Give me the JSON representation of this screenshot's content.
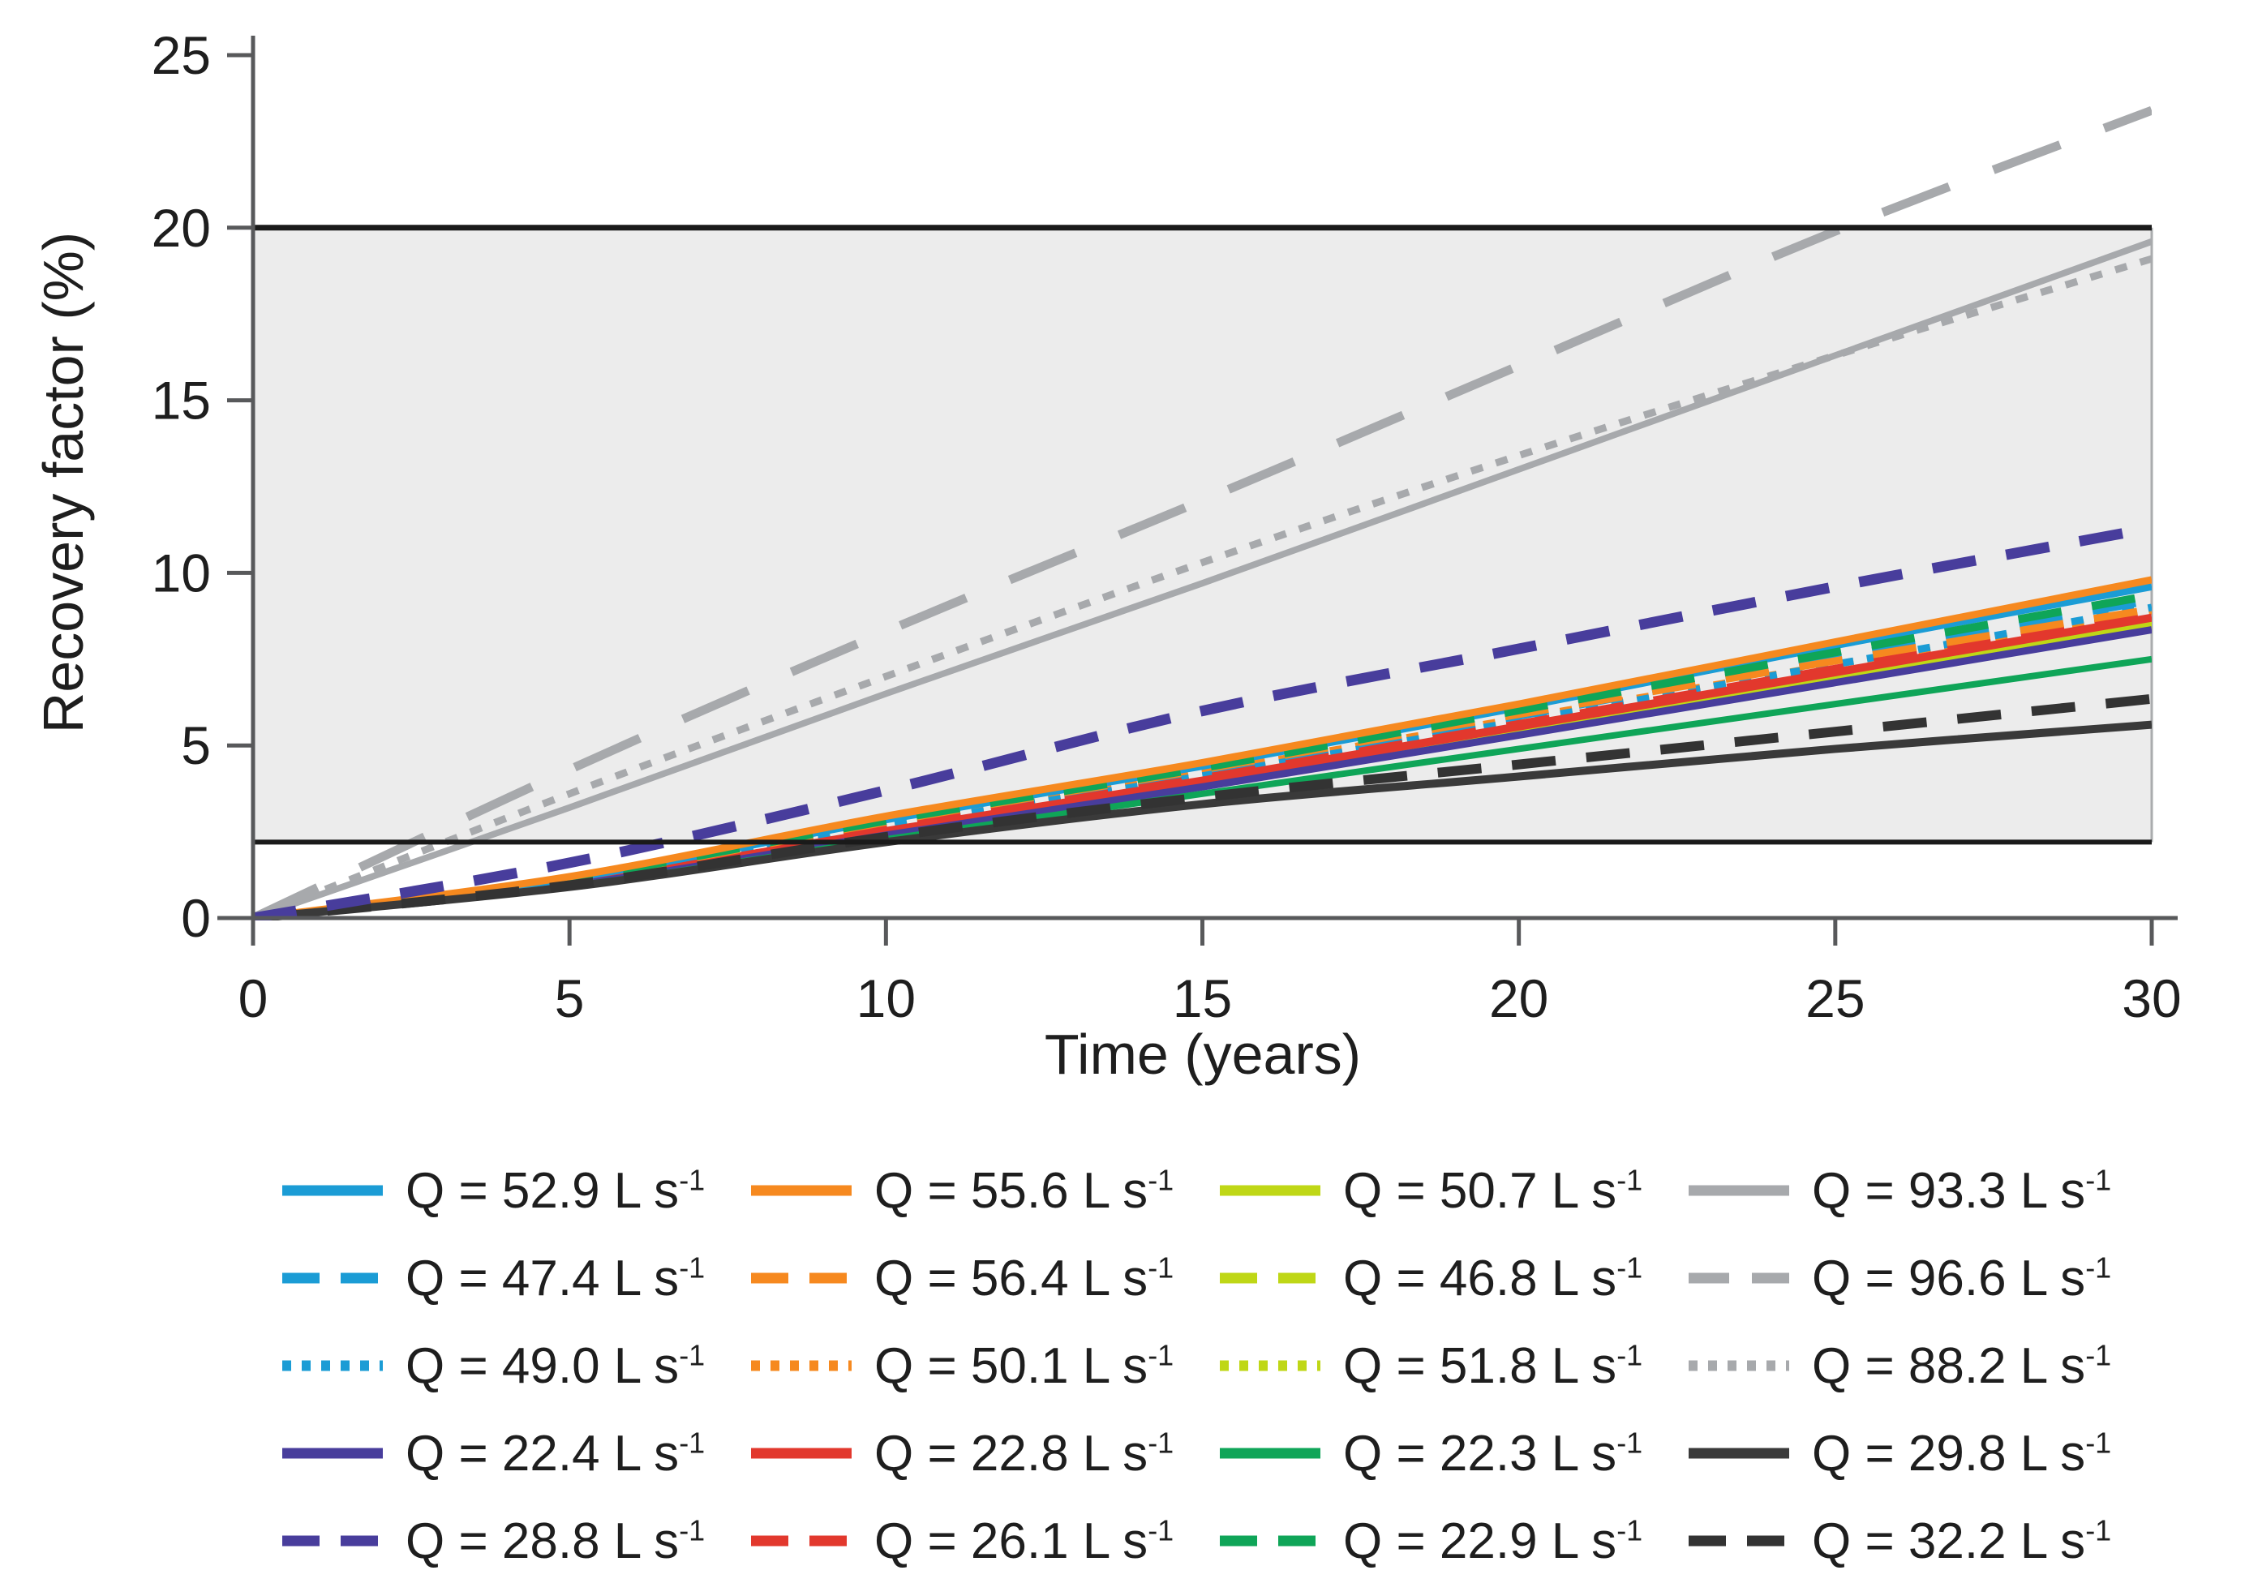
{
  "chart_data": {
    "type": "line",
    "title": "",
    "xlabel": "Time (years)",
    "ylabel": "Recovery factor (%)",
    "xlim": [
      0,
      30
    ],
    "ylim": [
      0,
      25
    ],
    "xticks": [
      "0",
      "5",
      "10",
      "15",
      "20",
      "25",
      "30"
    ],
    "yticks": [
      "0",
      "5",
      "10",
      "15",
      "20",
      "25"
    ],
    "grid": false,
    "legend_position": "below",
    "legend_columns": 4,
    "shaded_band": {
      "from": 2.2,
      "to": 20,
      "fill": "#ececec",
      "edge_color": "#1a1a1a",
      "right_edge_color": "#aaacae"
    },
    "axis_color": "#58595b",
    "tick_label_color": "#1e1e1e",
    "x": [
      0,
      5,
      10,
      15,
      20,
      25,
      30
    ],
    "series": [
      {
        "label": "Q = 52.9 L s",
        "sup": "-1",
        "q": "52.9",
        "color": "#1b9cd5",
        "style": "solid",
        "width": 9,
        "z": 14,
        "values": [
          0,
          1.15,
          2.85,
          4.4,
          6.1,
          7.9,
          9.6
        ]
      },
      {
        "label": "Q = 55.6 L s",
        "sup": "-1",
        "q": "55.6",
        "color": "#f6891f",
        "style": "solid",
        "width": 9,
        "z": 16,
        "values": [
          0,
          1.2,
          2.95,
          4.5,
          6.2,
          8.0,
          9.8
        ]
      },
      {
        "label": "Q = 50.7 L s",
        "sup": "-1",
        "q": "50.7",
        "color": "#bfd716",
        "style": "solid",
        "width": 9,
        "z": 4,
        "values": [
          0,
          1.0,
          2.5,
          3.95,
          5.45,
          7.0,
          8.5
        ]
      },
      {
        "label": "Q = 93.3 L s",
        "sup": "-1",
        "q": "93.3",
        "color": "#a7a9ac",
        "style": "solid",
        "width": 8,
        "z": 1,
        "values": [
          0,
          3.2,
          6.5,
          9.7,
          13.0,
          16.3,
          19.6
        ]
      },
      {
        "label": "Q = 47.4 L s",
        "sup": "-1",
        "q": "47.4",
        "color": "#1b9cd5",
        "style": "dashed",
        "width": 9,
        "z": 9,
        "values": [
          0,
          1.1,
          2.7,
          4.2,
          5.85,
          7.55,
          9.2
        ]
      },
      {
        "label": "Q = 56.4 L s",
        "sup": "-1",
        "q": "56.4",
        "color": "#f6891f",
        "style": "dashed",
        "width": 9,
        "z": 13,
        "values": [
          0,
          1.12,
          2.78,
          4.3,
          5.9,
          7.45,
          8.95
        ]
      },
      {
        "label": "Q = 46.8 L s",
        "sup": "-1",
        "q": "46.8",
        "color": "#bfd716",
        "style": "dashed",
        "width": 9,
        "z": 5,
        "values": [
          0,
          0.98,
          2.45,
          3.88,
          5.4,
          6.92,
          8.45
        ]
      },
      {
        "label": "Q = 96.6 L s",
        "sup": "-1",
        "q": "96.6",
        "color": "#a7a9ac",
        "style": "longdash",
        "width": 11,
        "z": 3,
        "values": [
          0,
          4.3,
          8.3,
          12.1,
          16.0,
          19.9,
          23.4
        ]
      },
      {
        "label": "Q = 49.0 L s",
        "sup": "-1",
        "q": "49.0",
        "color": "#1b9cd5",
        "style": "dotted",
        "width": 9,
        "z": 8,
        "values": [
          0,
          1.08,
          2.65,
          4.12,
          5.7,
          7.35,
          9.0
        ]
      },
      {
        "label": "Q = 50.1 L s",
        "sup": "-1",
        "q": "50.1",
        "color": "#f6891f",
        "style": "dotted",
        "width": 9,
        "z": 7,
        "values": [
          0,
          1.1,
          2.72,
          4.22,
          5.78,
          7.35,
          8.9
        ]
      },
      {
        "label": "Q = 51.8 L s",
        "sup": "-1",
        "q": "51.8",
        "color": "#bfd716",
        "style": "dotted",
        "width": 9,
        "z": 6,
        "values": [
          0,
          1.02,
          2.55,
          4.0,
          5.52,
          7.05,
          8.6
        ]
      },
      {
        "label": "Q = 88.2 L s",
        "sup": "-1",
        "q": "88.2",
        "color": "#a7a9ac",
        "style": "dotted",
        "width": 9,
        "z": 2,
        "values": [
          0,
          3.6,
          7.0,
          10.3,
          13.4,
          16.3,
          19.1
        ]
      },
      {
        "label": "Q = 22.4 L s",
        "sup": "-1",
        "q": "22.4",
        "color": "#483d9c",
        "style": "solid",
        "width": 9,
        "z": 12,
        "values": [
          0,
          0.95,
          2.4,
          3.8,
          5.3,
          6.82,
          8.35
        ]
      },
      {
        "label": "Q = 22.8 L s",
        "sup": "-1",
        "q": "22.8",
        "color": "#e2382d",
        "style": "solid",
        "width": 10,
        "z": 11,
        "values": [
          0,
          1.0,
          2.52,
          3.98,
          5.55,
          7.12,
          8.7
        ]
      },
      {
        "label": "Q = 22.3 L s",
        "sup": "-1",
        "q": "22.3",
        "color": "#0fa558",
        "style": "solid",
        "width": 8,
        "z": 17,
        "values": [
          0,
          0.92,
          2.28,
          3.6,
          4.9,
          6.2,
          7.5
        ]
      },
      {
        "label": "Q = 29.8 L s",
        "sup": "-1",
        "q": "29.8",
        "color": "#3a3a3a",
        "style": "solid",
        "width": 10,
        "z": 18,
        "values": [
          0,
          0.9,
          2.2,
          3.3,
          4.1,
          4.9,
          5.6
        ]
      },
      {
        "label": "Q = 28.8 L s",
        "sup": "-1",
        "q": "28.8",
        "color": "#483d9c",
        "style": "dashed",
        "width": 13,
        "z": 20,
        "values": [
          0,
          1.6,
          3.7,
          6.0,
          7.8,
          9.6,
          11.3
        ]
      },
      {
        "label": "Q = 26.1 L s",
        "sup": "-1",
        "q": "26.1",
        "color": "#e2382d",
        "style": "dashed",
        "width": 10,
        "z": 10,
        "values": [
          0,
          1.05,
          2.58,
          4.05,
          5.62,
          7.22,
          8.8
        ]
      },
      {
        "label": "Q = 22.9 L s",
        "sup": "-1",
        "q": "22.9",
        "color": "#0fa558",
        "style": "dashed",
        "width": 10,
        "z": 15,
        "values": [
          0,
          1.15,
          2.82,
          4.35,
          6.02,
          7.7,
          9.35
        ]
      },
      {
        "label": "Q = 32.2 L s",
        "sup": "-1",
        "q": "32.2",
        "color": "#333333",
        "style": "dashed",
        "width": 12,
        "z": 19,
        "values": [
          0,
          0.95,
          2.35,
          3.5,
          4.45,
          5.4,
          6.35
        ]
      }
    ]
  }
}
